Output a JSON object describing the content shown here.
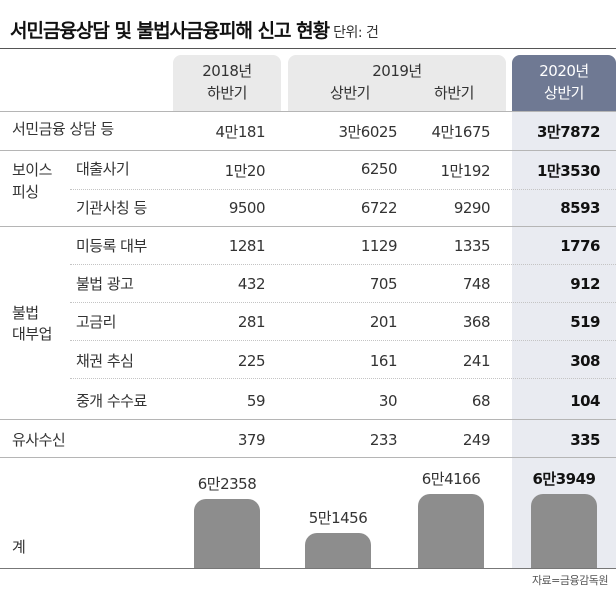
{
  "title": "서민금융상담 및 불법사금융피해 신고 현황",
  "unit_label": "단위: 건",
  "source": "자료=금융감독원",
  "headers": {
    "h2018_year": "2018년",
    "h2018_half": "하반기",
    "h2019_year": "2019년",
    "h2019_half1": "상반기",
    "h2019_half2": "하반기",
    "h2020_year": "2020년",
    "h2020_half": "상반기"
  },
  "groups": {
    "voice_line1": "보이스",
    "voice_line2": "피싱",
    "illegal_line1": "불법",
    "illegal_line2": "대부업"
  },
  "rows": [
    {
      "label": "서민금융 상담 등",
      "values": [
        "4만181",
        "3만6025",
        "4만1675",
        "3만7872"
      ]
    },
    {
      "label": "대출사기",
      "values": [
        "1만20",
        "6250",
        "1만192",
        "1만3530"
      ]
    },
    {
      "label": "기관사칭 등",
      "values": [
        "9500",
        "6722",
        "9290",
        "8593"
      ]
    },
    {
      "label": "미등록 대부",
      "values": [
        "1281",
        "1129",
        "1335",
        "1776"
      ]
    },
    {
      "label": "불법 광고",
      "values": [
        "432",
        "705",
        "748",
        "912"
      ]
    },
    {
      "label": "고금리",
      "values": [
        "281",
        "201",
        "368",
        "519"
      ]
    },
    {
      "label": "채권 추심",
      "values": [
        "225",
        "161",
        "241",
        "308"
      ]
    },
    {
      "label": "중개 수수료",
      "values": [
        "59",
        "30",
        "68",
        "104"
      ]
    },
    {
      "label": "유사수신",
      "values": [
        "379",
        "233",
        "249",
        "335"
      ]
    }
  ],
  "total_label": "계",
  "chart_data": {
    "type": "bar",
    "categories": [
      "2018년 하반기",
      "2019년 상반기",
      "2019년 하반기",
      "2020년 상반기"
    ],
    "values": [
      62358,
      51456,
      64166,
      63949
    ],
    "data_labels": [
      "6만2358",
      "5만1456",
      "6만4166",
      "6만3949"
    ],
    "bar_color": "#8d8d8d",
    "highlight_color": "#6f7993"
  }
}
